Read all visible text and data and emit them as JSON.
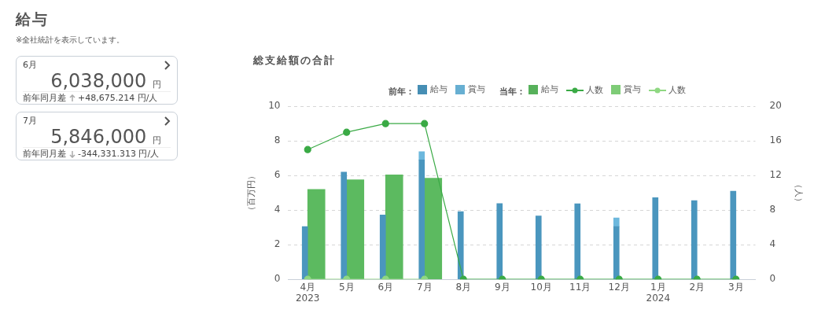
{
  "chart_data": [
    {
      "type": "other",
      "title": "給与",
      "subtitle": "※全社統計を表示しています。",
      "annotations": [
        "6月",
        "6,038,000",
        "円",
        "前年同月差",
        "+48,675.214 円/人",
        "7月",
        "5,846,000",
        "円",
        "前年同月差",
        "-344,331.313 円/人"
      ]
    },
    {
      "type": "bar",
      "title": "総支給額の合計",
      "categories": [
        "4月\n2023",
        "5月",
        "6月",
        "7月",
        "8月",
        "9月",
        "10月",
        "11月",
        "12月",
        "1月\n2024",
        "2月",
        "3月"
      ],
      "series": [
        {
          "name": "給与",
          "color": "#4a96be",
          "values": [
            3.05,
            6.2,
            3.72,
            6.9,
            3.92,
            4.38,
            3.67,
            4.37,
            3.05,
            4.72,
            4.55,
            5.1
          ]
        },
        {
          "name": "賞与",
          "color": "#6cb8dd",
          "values": [
            null,
            null,
            null,
            0.48,
            null,
            null,
            null,
            null,
            0.5,
            null,
            null,
            null
          ],
          "base": [
            null,
            null,
            null,
            6.9,
            null,
            null,
            null,
            null,
            3.05,
            null,
            null,
            null
          ]
        },
        {
          "name": "給与",
          "color": "#5cba60",
          "values": [
            5.2,
            5.75,
            6.04,
            5.85,
            null,
            null,
            null,
            null,
            null,
            null,
            null,
            null
          ]
        },
        {
          "name": "人数",
          "type": "line",
          "axis": "y2",
          "color": "#3aaa45",
          "values": [
            15,
            17,
            18,
            18,
            0,
            0,
            0,
            0,
            0,
            0,
            0,
            0
          ]
        },
        {
          "name": "賞与",
          "color": "#85d77d",
          "values": [
            0,
            0,
            0,
            0,
            null,
            null,
            null,
            null,
            null,
            null,
            null,
            null
          ]
        },
        {
          "name": "人数",
          "type": "line",
          "axis": "y2",
          "color": "#8fd882",
          "values": [
            0,
            0,
            0,
            0,
            null,
            null,
            null,
            null,
            null,
            null,
            null,
            null
          ]
        }
      ],
      "annotations": [
        "前年：",
        "当年："
      ],
      "ylabel": "（百万円）",
      "y2label": "（人）",
      "ylim": [
        0,
        10
      ],
      "yticks": [
        0,
        2,
        4,
        6,
        8,
        10
      ],
      "y2lim": [
        0,
        20
      ],
      "y2ticks": [
        0,
        4,
        8,
        12,
        16,
        20
      ],
      "grid": "y",
      "legend": "top",
      "marker": "circle"
    }
  ]
}
